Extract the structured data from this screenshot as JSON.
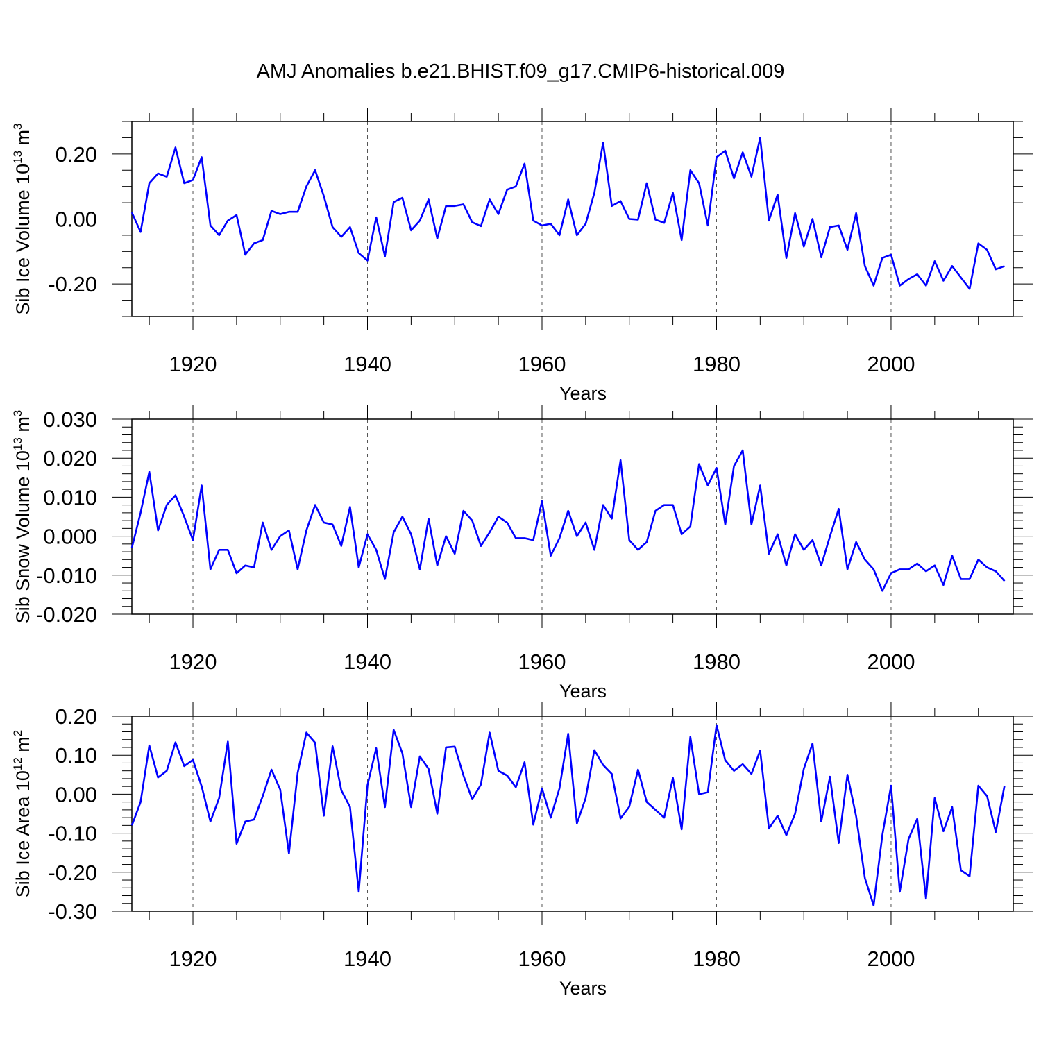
{
  "figure_title": "AMJ Anomalies b.e21.BHIST.f09_g17.CMIP6-historical.009",
  "chart_data": [
    {
      "type": "line",
      "name": "sib-ice-volume",
      "ylabel": {
        "main": "Sib Ice Volume 10",
        "exp": "13",
        "unit": " m",
        "unit_exp": "3"
      },
      "xlabel": "Years",
      "xlim": [
        1913,
        2014
      ],
      "ylim": [
        -0.3,
        0.3
      ],
      "major_yticks": [
        -0.2,
        0.0,
        0.2
      ],
      "ytick_labels": [
        "-0.20",
        "0.00",
        "0.20"
      ],
      "minor_ystep": 0.05,
      "major_xticks": [
        1920,
        1940,
        1960,
        1980,
        2000
      ],
      "xtick_labels": [
        "1920",
        "1940",
        "1960",
        "1980",
        "2000"
      ],
      "series": [
        {
          "name": "Sib Ice Volume",
          "color": "#0000ff",
          "start_year": 1913,
          "values": [
            0.02,
            -0.04,
            0.11,
            0.14,
            0.13,
            0.22,
            0.11,
            0.12,
            0.19,
            -0.02,
            -0.05,
            -0.005,
            0.012,
            -0.11,
            -0.075,
            -0.065,
            0.025,
            0.015,
            0.022,
            0.022,
            0.1,
            0.15,
            0.07,
            -0.025,
            -0.055,
            -0.025,
            -0.105,
            -0.128,
            0.005,
            -0.115,
            0.052,
            0.065,
            -0.035,
            -0.005,
            0.06,
            -0.06,
            0.04,
            0.04,
            0.045,
            -0.01,
            -0.022,
            0.06,
            0.015,
            0.09,
            0.1,
            0.17,
            -0.005,
            -0.02,
            -0.015,
            -0.05,
            0.06,
            -0.05,
            -0.015,
            0.08,
            0.235,
            0.04,
            0.055,
            0.0,
            -0.002,
            0.11,
            -0.002,
            -0.012,
            0.08,
            -0.065,
            0.15,
            0.11,
            -0.02,
            0.19,
            0.21,
            0.125,
            0.205,
            0.13,
            0.25,
            -0.005,
            0.075,
            -0.12,
            0.018,
            -0.085,
            0.0,
            -0.118,
            -0.025,
            -0.02,
            -0.095,
            0.018,
            -0.145,
            -0.205,
            -0.12,
            -0.11,
            -0.205,
            -0.185,
            -0.17,
            -0.205,
            -0.13,
            -0.19,
            -0.145,
            -0.18,
            -0.215,
            -0.075,
            -0.095,
            -0.155,
            -0.145
          ]
        }
      ]
    },
    {
      "type": "line",
      "name": "sib-snow-volume",
      "ylabel": {
        "main": "Sib Snow Volume 10",
        "exp": "13",
        "unit": " m",
        "unit_exp": "3"
      },
      "xlabel": "Years",
      "xlim": [
        1913,
        2014
      ],
      "ylim": [
        -0.02,
        0.03
      ],
      "major_yticks": [
        -0.02,
        -0.01,
        0.0,
        0.01,
        0.02,
        0.03
      ],
      "ytick_labels": [
        "-0.020",
        "-0.010",
        "0.000",
        "0.010",
        "0.020",
        "0.030"
      ],
      "minor_ystep": 0.002,
      "major_xticks": [
        1920,
        1940,
        1960,
        1980,
        2000
      ],
      "xtick_labels": [
        "1920",
        "1940",
        "1960",
        "1980",
        "2000"
      ],
      "series": [
        {
          "name": "Sib Snow Volume",
          "color": "#0000ff",
          "start_year": 1913,
          "values": [
            -0.003,
            0.006,
            0.0165,
            0.0015,
            0.008,
            0.0105,
            0.005,
            -0.001,
            0.013,
            -0.0085,
            -0.0035,
            -0.0035,
            -0.0095,
            -0.0075,
            -0.008,
            0.0035,
            -0.0035,
            0.0,
            0.0015,
            -0.0085,
            0.0015,
            0.008,
            0.0035,
            0.003,
            -0.0025,
            0.0075,
            -0.008,
            0.0005,
            -0.0035,
            -0.011,
            0.001,
            0.005,
            0.0005,
            -0.0085,
            0.0045,
            -0.0075,
            0.0,
            -0.0045,
            0.0065,
            0.004,
            -0.0025,
            0.001,
            0.005,
            0.0035,
            -0.0005,
            -0.0005,
            -0.001,
            0.009,
            -0.005,
            -0.0005,
            0.0065,
            0.0,
            0.0035,
            -0.0035,
            0.008,
            0.0045,
            0.0195,
            -0.001,
            -0.0035,
            -0.0015,
            0.0065,
            0.008,
            0.008,
            0.0005,
            0.0025,
            0.0185,
            0.013,
            0.0175,
            0.003,
            0.018,
            0.022,
            0.003,
            0.013,
            -0.0045,
            0.0005,
            -0.0075,
            0.0005,
            -0.0035,
            -0.001,
            -0.0075,
            0.0,
            0.007,
            -0.0085,
            -0.0015,
            -0.006,
            -0.0085,
            -0.014,
            -0.0095,
            -0.0085,
            -0.0085,
            -0.007,
            -0.009,
            -0.0075,
            -0.0125,
            -0.005,
            -0.011,
            -0.011,
            -0.006,
            -0.008,
            -0.009,
            -0.0115
          ]
        }
      ]
    },
    {
      "type": "line",
      "name": "sib-ice-area",
      "ylabel": {
        "main": "Sib Ice Area 10",
        "exp": "12",
        "unit": " m",
        "unit_exp": "2"
      },
      "xlabel": "Years",
      "xlim": [
        1913,
        2014
      ],
      "ylim": [
        -0.3,
        0.2
      ],
      "major_yticks": [
        -0.3,
        -0.2,
        -0.1,
        0.0,
        0.1,
        0.2
      ],
      "ytick_labels": [
        "-0.30",
        "-0.20",
        "-0.10",
        "0.00",
        "0.10",
        "0.20"
      ],
      "minor_ystep": 0.02,
      "major_xticks": [
        1920,
        1940,
        1960,
        1980,
        2000
      ],
      "xtick_labels": [
        "1920",
        "1940",
        "1960",
        "1980",
        "2000"
      ],
      "series": [
        {
          "name": "Sib Ice Area",
          "color": "#0000ff",
          "start_year": 1913,
          "values": [
            -0.08,
            -0.02,
            0.125,
            0.043,
            0.06,
            0.133,
            0.072,
            0.088,
            0.02,
            -0.07,
            -0.01,
            0.135,
            -0.127,
            -0.07,
            -0.065,
            -0.005,
            0.063,
            0.012,
            -0.152,
            0.055,
            0.158,
            0.132,
            -0.055,
            0.123,
            0.01,
            -0.033,
            -0.25,
            0.023,
            0.118,
            -0.033,
            0.165,
            0.105,
            -0.033,
            0.097,
            0.065,
            -0.05,
            0.12,
            0.122,
            0.048,
            -0.013,
            0.025,
            0.158,
            0.06,
            0.048,
            0.018,
            0.082,
            -0.078,
            0.015,
            -0.06,
            0.015,
            0.155,
            -0.075,
            -0.01,
            0.113,
            0.075,
            0.052,
            -0.062,
            -0.032,
            0.063,
            -0.02,
            -0.04,
            -0.06,
            0.042,
            -0.09,
            0.147,
            0.0,
            0.005,
            0.177,
            0.087,
            0.06,
            0.077,
            0.052,
            0.112,
            -0.088,
            -0.055,
            -0.105,
            -0.05,
            0.065,
            0.13,
            -0.07,
            0.045,
            -0.125,
            0.05,
            -0.057,
            -0.215,
            -0.285,
            -0.105,
            0.022,
            -0.25,
            -0.115,
            -0.063,
            -0.268,
            -0.01,
            -0.095,
            -0.033,
            -0.195,
            -0.21,
            0.022,
            -0.005,
            -0.097,
            0.022
          ]
        }
      ]
    }
  ]
}
